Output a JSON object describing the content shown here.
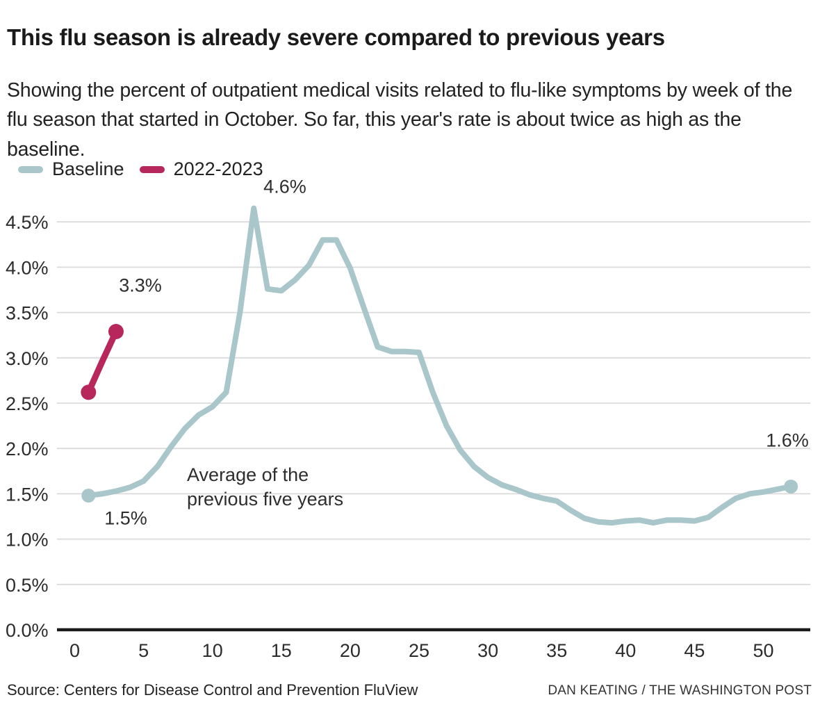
{
  "header": {
    "title": "This flu season is already severe compared to previous years",
    "subtitle": "Showing the percent of outpatient medical visits related to flu-like symptoms by week of the flu season that started in October. So far, this year's rate is about twice as high as the baseline."
  },
  "legend": [
    {
      "label": "Baseline",
      "color": "#a9c6ca"
    },
    {
      "label": "2022-2023",
      "color": "#b7275c"
    }
  ],
  "footer": {
    "source": "Source: Centers for Disease Control and Prevention FluView",
    "credit": "DAN KEATING / THE WASHINGTON POST"
  },
  "chart_data": {
    "type": "line",
    "title": "This flu season is already severe compared to previous years",
    "xlabel": "",
    "ylabel": "",
    "grid": true,
    "legend_position": "top-left",
    "colors": {
      "gridline": "#dbdbdb",
      "axis_line": "#1a1a1a",
      "tick_text": "#2b2b2b"
    },
    "x_axis": {
      "ticks": [
        0,
        5,
        10,
        15,
        20,
        25,
        30,
        35,
        40,
        45,
        50
      ],
      "range": [
        0,
        53.5
      ]
    },
    "y_axis": {
      "tick_values": [
        0,
        0.5,
        1.0,
        1.5,
        2.0,
        2.5,
        3.0,
        3.5,
        4.0,
        4.5
      ],
      "tick_labels": [
        "0.0%",
        "0.5%",
        "1.0%",
        "1.5%",
        "2.0%",
        "2.5%",
        "3.0%",
        "3.5%",
        "4.0%",
        "4.5%"
      ],
      "range": [
        0,
        4.9
      ],
      "unit": "%"
    },
    "series": [
      {
        "name": "Baseline",
        "color": "#a9c6ca",
        "line_width": 8,
        "dot_weeks": [
          1,
          52
        ],
        "dot_radius": 10,
        "weeks": [
          1,
          2,
          3,
          4,
          5,
          6,
          7,
          8,
          9,
          10,
          11,
          12,
          13,
          14,
          15,
          16,
          17,
          18,
          19,
          20,
          21,
          22,
          23,
          24,
          25,
          26,
          27,
          28,
          29,
          30,
          31,
          32,
          33,
          34,
          35,
          36,
          37,
          38,
          39,
          40,
          41,
          42,
          43,
          44,
          45,
          46,
          47,
          48,
          49,
          50,
          51,
          52
        ],
        "values": [
          1.48,
          1.5,
          1.53,
          1.57,
          1.64,
          1.8,
          2.02,
          2.22,
          2.37,
          2.46,
          2.62,
          3.5,
          4.65,
          3.76,
          3.74,
          3.86,
          4.02,
          4.3,
          4.3,
          3.99,
          3.55,
          3.12,
          3.07,
          3.07,
          3.06,
          2.62,
          2.25,
          1.98,
          1.8,
          1.68,
          1.6,
          1.55,
          1.49,
          1.45,
          1.42,
          1.32,
          1.23,
          1.19,
          1.18,
          1.2,
          1.21,
          1.18,
          1.21,
          1.21,
          1.2,
          1.24,
          1.35,
          1.45,
          1.5,
          1.52,
          1.55,
          1.58
        ]
      },
      {
        "name": "2022-2023",
        "color": "#b7275c",
        "line_width": 9,
        "dot_weeks": [
          1,
          3
        ],
        "dot_radius": 11,
        "weeks": [
          1,
          2,
          3
        ],
        "values": [
          2.62,
          2.96,
          3.29
        ]
      }
    ],
    "annotations": [
      {
        "id": "peak-label",
        "text": "4.6%",
        "week": 15.26,
        "pct": 4.82,
        "anchor": "middle"
      },
      {
        "id": "current-season-label",
        "text": "3.3%",
        "week": 4.77,
        "pct": 3.73,
        "anchor": "middle"
      },
      {
        "id": "baseline-start-label",
        "text": "1.5%",
        "week": 3.71,
        "pct": 1.16,
        "anchor": "middle"
      },
      {
        "id": "baseline-end-label",
        "text": "1.6%",
        "week": 51.74,
        "pct": 2.02,
        "anchor": "middle"
      },
      {
        "id": "baseline-note",
        "lines": [
          "Average of the",
          "previous five years"
        ],
        "week": 8.15,
        "pct": 1.64,
        "anchor": "start"
      }
    ]
  }
}
